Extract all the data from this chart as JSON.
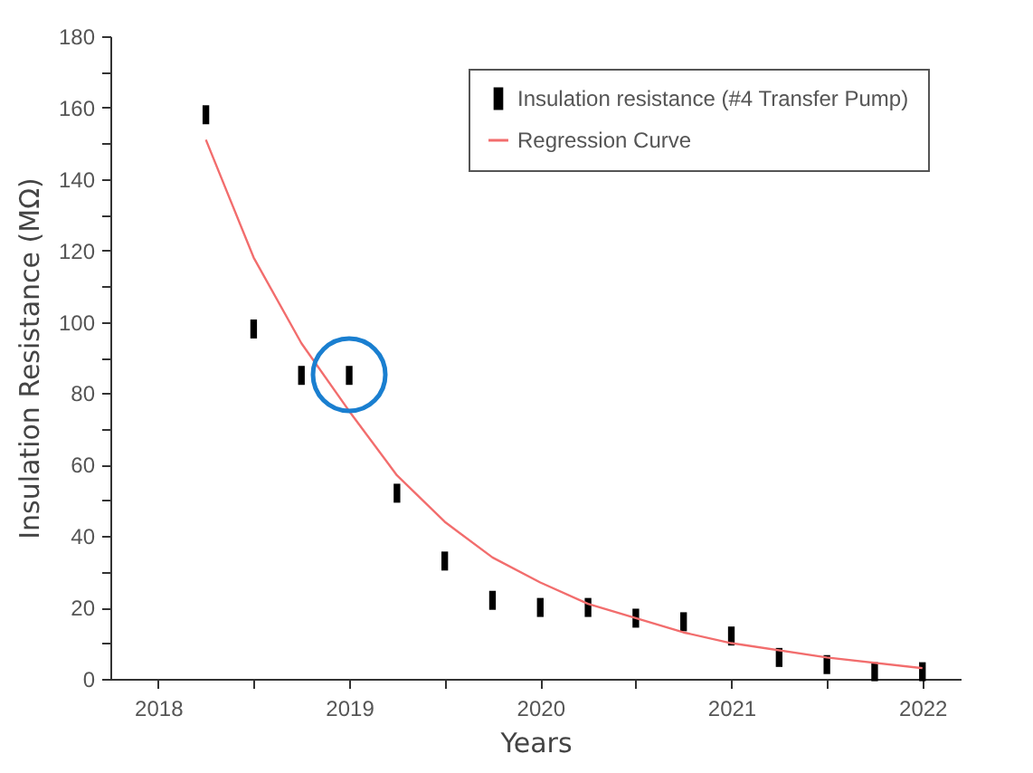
{
  "chart_data": {
    "type": "scatter",
    "xlabel": "Years",
    "ylabel": "Insulation Resistance (MΩ)",
    "xlim": [
      2017.75,
      2022.2
    ],
    "xticks": [
      2018,
      {
        "value": 2018.5,
        "label": null
      },
      2019,
      {
        "value": 2019.5,
        "label": null
      },
      2020,
      {
        "value": 2020.5,
        "label": null
      },
      2021,
      {
        "value": 2021.5,
        "label": null
      },
      2022
    ],
    "ylim": [
      0,
      180
    ],
    "yticks": [
      0,
      {
        "value": 10,
        "label": null
      },
      20,
      {
        "value": 30,
        "label": null
      },
      40,
      {
        "value": 50,
        "label": null
      },
      60,
      {
        "value": 70,
        "label": null
      },
      80,
      {
        "value": 90,
        "label": null
      },
      100,
      {
        "value": 110,
        "label": null
      },
      120,
      {
        "value": 130,
        "label": null
      },
      140,
      {
        "value": 150,
        "label": null
      },
      160,
      {
        "value": 170,
        "label": null
      },
      180
    ],
    "grid": false,
    "legend": "top right",
    "marker": "square",
    "series": [
      {
        "name": "Insulation resistance (#4 Transfer Pump)",
        "color": "#000000",
        "x": [
          2018.25,
          2018.5,
          2018.75,
          2019,
          2019.25,
          2019.5,
          2019.75,
          2020,
          2020.25,
          2020.5,
          2020.75,
          2021,
          2021.25,
          2021.5,
          2021.75,
          2022
        ],
        "values": [
          158,
          98,
          85,
          85,
          52,
          33,
          22,
          20,
          20,
          17,
          16,
          12,
          6,
          4,
          2,
          2
        ]
      },
      {
        "name": "Regression Curve",
        "color": "#f26d6d",
        "type": "line",
        "line_style": "solid",
        "marker": "none",
        "x": [
          2018.25,
          2018.5,
          2018.75,
          2019,
          2019.25,
          2019.5,
          2019.75,
          2020,
          2020.25,
          2020.5,
          2020.75,
          2021,
          2021.5,
          2022
        ],
        "values": [
          151,
          118,
          94,
          75,
          57,
          44,
          34,
          27,
          21,
          17,
          13,
          10,
          6,
          3
        ]
      }
    ]
  }
}
